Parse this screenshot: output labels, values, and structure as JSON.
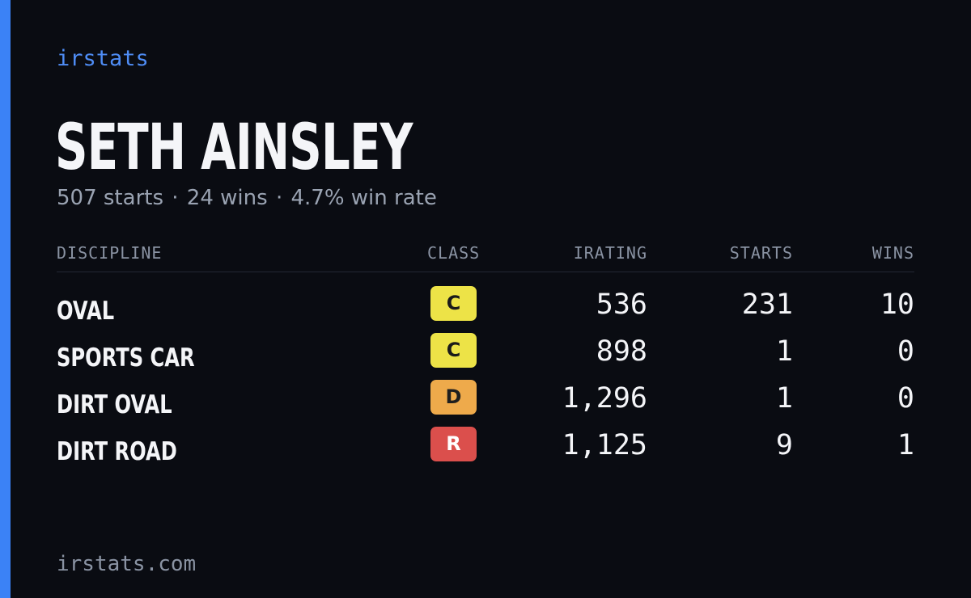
{
  "brand": "irstats",
  "player": {
    "name": "SETH AINSLEY",
    "summary": {
      "starts": "507 starts",
      "wins": "24 wins",
      "win_rate": "4.7% win rate",
      "separator": "·"
    }
  },
  "table": {
    "headers": {
      "discipline": "DISCIPLINE",
      "class": "CLASS",
      "irating": "IRATING",
      "starts": "STARTS",
      "wins": "WINS"
    },
    "rows": [
      {
        "discipline": "OVAL",
        "class": "C",
        "irating": "536",
        "starts": "231",
        "wins": "10"
      },
      {
        "discipline": "SPORTS CAR",
        "class": "C",
        "irating": "898",
        "starts": "1",
        "wins": "0"
      },
      {
        "discipline": "DIRT OVAL",
        "class": "D",
        "irating": "1,296",
        "starts": "1",
        "wins": "0"
      },
      {
        "discipline": "DIRT ROAD",
        "class": "R",
        "irating": "1,125",
        "starts": "9",
        "wins": "1"
      }
    ]
  },
  "colors": {
    "accent": "#3b82f6",
    "background": "#0a0c12",
    "class_C": "#ede347",
    "class_D": "#eeaa4b",
    "class_R": "#db4f4c"
  },
  "footer": "irstats.com"
}
